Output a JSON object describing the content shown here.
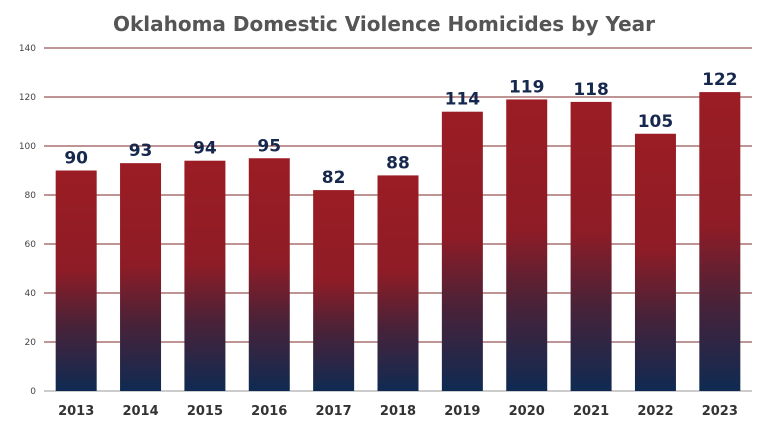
{
  "chart_data": {
    "type": "bar",
    "title": "Oklahoma Domestic Violence Homicides by Year",
    "xlabel": "",
    "ylabel": "",
    "categories": [
      "2013",
      "2014",
      "2015",
      "2016",
      "2017",
      "2018",
      "2019",
      "2020",
      "2021",
      "2022",
      "2023"
    ],
    "values": [
      90,
      93,
      94,
      95,
      82,
      88,
      114,
      119,
      118,
      105,
      122
    ],
    "ylim": [
      0,
      140
    ],
    "yticks": [
      0,
      20,
      40,
      60,
      80,
      100,
      120,
      140
    ],
    "grid": true,
    "legend": "none",
    "colors": {
      "bar_top": "#9b1c24",
      "bar_bottom": "#0f2a52",
      "data_label": "#16284d",
      "grid": "#7d2a2a"
    }
  }
}
